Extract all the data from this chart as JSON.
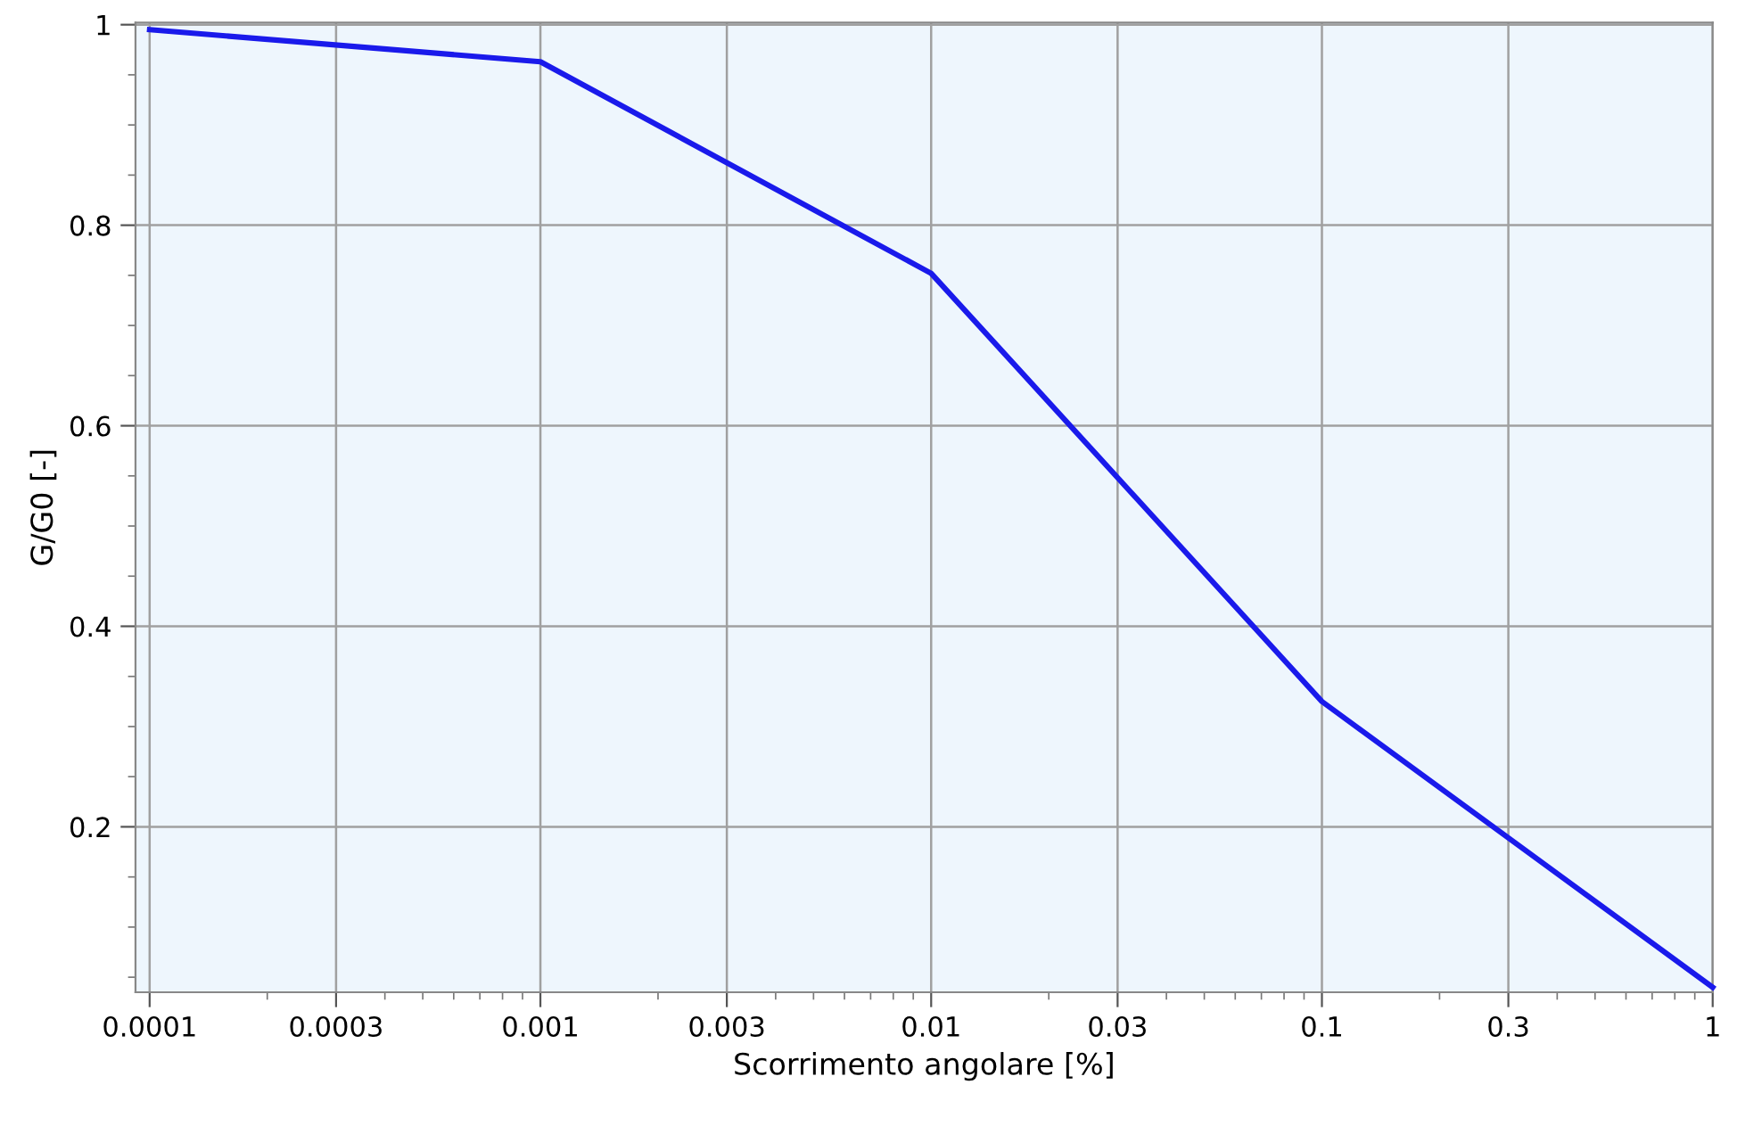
{
  "chart_data": {
    "type": "line",
    "xlabel": "Scorrimento angolare [%]",
    "ylabel": "G/G0 [-]",
    "log": "x",
    "grid": true,
    "marker": "none",
    "line_style": "solid",
    "x": [
      0.0001,
      0.001,
      0.01,
      0.1,
      1
    ],
    "series": [
      {
        "color": "#1a1aeb",
        "values": [
          0.995,
          0.963,
          0.752,
          0.325,
          0.04
        ]
      }
    ],
    "xlim": [
      9.2e-05,
      1.0
    ],
    "xticks": [
      0.0001,
      {
        "value": 0.0002,
        "label": null
      },
      0.0003,
      {
        "value": 0.0004,
        "label": null
      },
      {
        "value": 0.0005,
        "label": null
      },
      {
        "value": 0.0006,
        "label": null
      },
      {
        "value": 0.0007,
        "label": null
      },
      {
        "value": 0.0008,
        "label": null
      },
      {
        "value": 0.0009,
        "label": null
      },
      0.001,
      {
        "value": 0.002,
        "label": null
      },
      0.003,
      {
        "value": 0.004,
        "label": null
      },
      {
        "value": 0.005,
        "label": null
      },
      {
        "value": 0.006,
        "label": null
      },
      {
        "value": 0.007,
        "label": null
      },
      {
        "value": 0.008,
        "label": null
      },
      {
        "value": 0.009,
        "label": null
      },
      0.01,
      {
        "value": 0.02,
        "label": null
      },
      0.03,
      {
        "value": 0.04,
        "label": null
      },
      {
        "value": 0.05,
        "label": null
      },
      {
        "value": 0.06,
        "label": null
      },
      {
        "value": 0.07,
        "label": null
      },
      {
        "value": 0.08,
        "label": null
      },
      {
        "value": 0.09,
        "label": null
      },
      0.1,
      {
        "value": 0.2,
        "label": null
      },
      0.3,
      {
        "value": 0.4,
        "label": null
      },
      {
        "value": 0.5,
        "label": null
      },
      {
        "value": 0.6,
        "label": null
      },
      {
        "value": 0.7,
        "label": null
      },
      {
        "value": 0.8,
        "label": null
      },
      {
        "value": 0.9,
        "label": null
      },
      1
    ],
    "ylim": [
      0.035,
      1.002
    ],
    "yticks": [
      {
        "value": 0.05,
        "label": null
      },
      {
        "value": 0.1,
        "label": null
      },
      {
        "value": 0.15,
        "label": null
      },
      0.2,
      {
        "value": 0.25,
        "label": null
      },
      {
        "value": 0.3,
        "label": null
      },
      {
        "value": 0.35,
        "label": null
      },
      0.4,
      {
        "value": 0.45,
        "label": null
      },
      {
        "value": 0.5,
        "label": null
      },
      {
        "value": 0.55,
        "label": null
      },
      0.6,
      {
        "value": 0.65,
        "label": null
      },
      {
        "value": 0.7,
        "label": null
      },
      {
        "value": 0.75,
        "label": null
      },
      0.8,
      {
        "value": 0.85,
        "label": null
      },
      {
        "value": 0.9,
        "label": null
      },
      {
        "value": 0.95,
        "label": null
      },
      1
    ]
  }
}
